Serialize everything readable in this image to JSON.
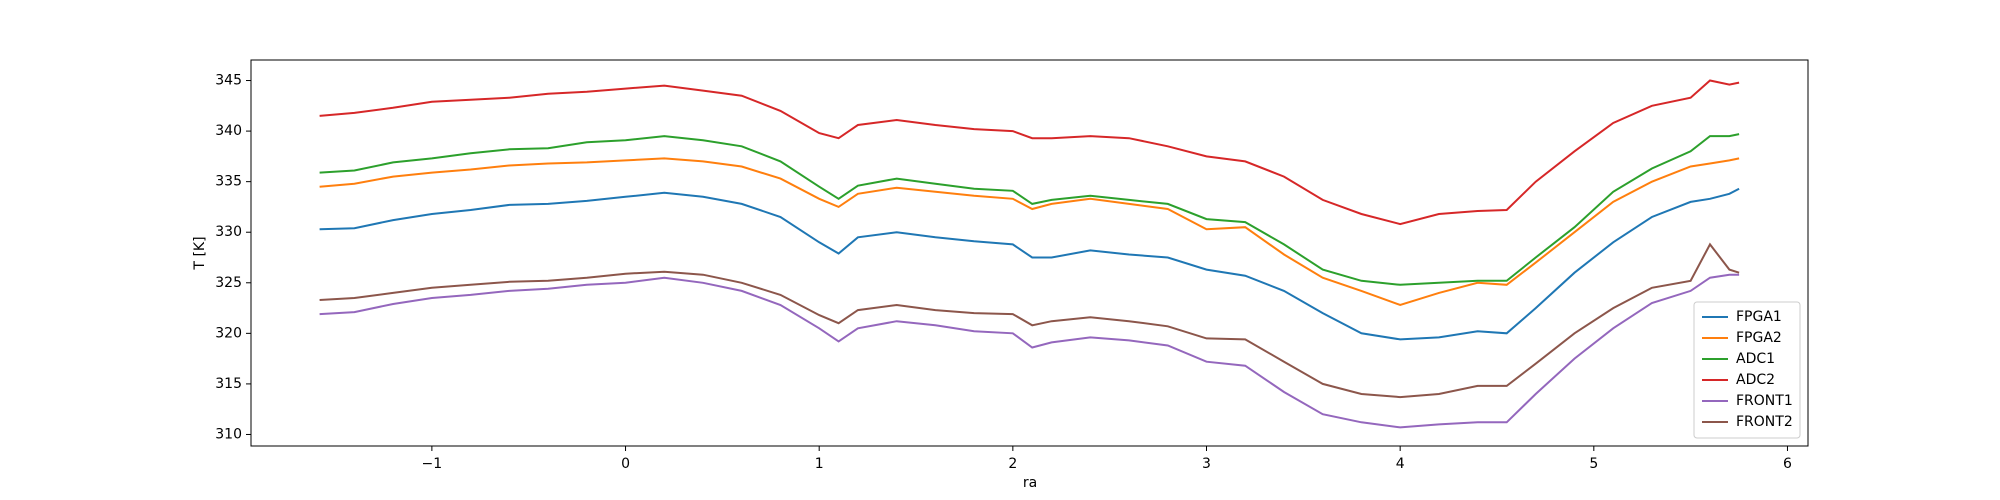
{
  "chart_data": {
    "type": "line",
    "x_label": "ra",
    "y_label": "T [K]",
    "x": [
      -1.58,
      -1.4,
      -1.2,
      -1.0,
      -0.8,
      -0.6,
      -0.4,
      -0.2,
      0,
      0.2,
      0.4,
      0.6,
      0.8,
      1.0,
      1.1,
      1.2,
      1.4,
      1.6,
      1.8,
      2.0,
      2.1,
      2.2,
      2.4,
      2.6,
      2.8,
      3.0,
      3.2,
      3.4,
      3.6,
      3.8,
      4.0,
      4.2,
      4.4,
      4.55,
      4.7,
      4.9,
      5.1,
      5.3,
      5.5,
      5.6,
      5.7,
      5.75
    ],
    "series": [
      {
        "name": "FPGA1",
        "color": "#1f77b4",
        "values": [
          330.3,
          330.4,
          331.2,
          331.8,
          332.2,
          332.7,
          332.8,
          333.1,
          333.5,
          333.9,
          333.5,
          332.8,
          331.5,
          329,
          327.9,
          329.5,
          330.0,
          329.5,
          329.1,
          328.8,
          327.5,
          327.5,
          328.2,
          327.8,
          327.5,
          326.3,
          325.7,
          324.2,
          322.0,
          320.0,
          319.4,
          319.6,
          320.2,
          320.0,
          322.5,
          326,
          329,
          331.5,
          333,
          333.3,
          333.8,
          334.3
        ]
      },
      {
        "name": "FPGA2",
        "color": "#ff7f0e",
        "values": [
          334.5,
          334.8,
          335.5,
          335.9,
          336.2,
          336.6,
          336.8,
          336.9,
          337.1,
          337.3,
          337.0,
          336.5,
          335.3,
          333.3,
          332.5,
          333.8,
          334.4,
          334.0,
          333.6,
          333.3,
          332.3,
          332.8,
          333.3,
          332.8,
          332.3,
          330.3,
          330.5,
          327.8,
          325.5,
          324.2,
          322.8,
          324.0,
          325.0,
          324.8,
          327,
          330,
          333,
          335,
          336.5,
          336.8,
          337.1,
          337.3
        ]
      },
      {
        "name": "ADC1",
        "color": "#2ca02c",
        "values": [
          335.9,
          336.1,
          336.9,
          337.3,
          337.8,
          338.2,
          338.3,
          338.9,
          339.1,
          339.5,
          339.1,
          338.5,
          337,
          334.5,
          333.3,
          334.6,
          335.3,
          334.8,
          334.3,
          334.1,
          332.8,
          333.2,
          333.6,
          333.2,
          332.8,
          331.3,
          331,
          328.8,
          326.3,
          325.2,
          324.8,
          325.0,
          325.2,
          325.2,
          327.5,
          330.5,
          334,
          336.3,
          338,
          339.5,
          339.5,
          339.7
        ]
      },
      {
        "name": "ADC2",
        "color": "#d62728",
        "values": [
          341.5,
          341.8,
          342.3,
          342.9,
          343.1,
          343.3,
          343.7,
          343.9,
          344.2,
          344.5,
          344.0,
          343.5,
          342.0,
          339.8,
          339.3,
          340.6,
          341.1,
          340.6,
          340.2,
          340.0,
          339.3,
          339.3,
          339.5,
          339.3,
          338.5,
          337.5,
          337.0,
          335.5,
          333.2,
          331.8,
          330.8,
          331.8,
          332.1,
          332.2,
          335,
          338,
          340.8,
          342.5,
          343.3,
          345.0,
          344.6,
          344.8
        ]
      },
      {
        "name": "FRONT1",
        "color": "#9467bd",
        "values": [
          321.9,
          322.1,
          322.9,
          323.5,
          323.8,
          324.2,
          324.4,
          324.8,
          325.0,
          325.5,
          325.0,
          324.2,
          322.8,
          320.5,
          319.2,
          320.5,
          321.2,
          320.8,
          320.2,
          320.0,
          318.6,
          319.1,
          319.6,
          319.3,
          318.8,
          317.2,
          316.8,
          314.2,
          312.0,
          311.2,
          310.7,
          311.0,
          311.2,
          311.2,
          314,
          317.5,
          320.5,
          323,
          324.2,
          325.5,
          325.8,
          325.8
        ]
      },
      {
        "name": "FRONT2",
        "color": "#8c564b",
        "values": [
          323.3,
          323.5,
          324.0,
          324.5,
          324.8,
          325.1,
          325.2,
          325.5,
          325.9,
          326.1,
          325.8,
          325.0,
          323.8,
          321.8,
          321.0,
          322.3,
          322.8,
          322.3,
          322.0,
          321.9,
          320.8,
          321.2,
          321.6,
          321.2,
          320.7,
          319.5,
          319.4,
          317.2,
          315.0,
          314.0,
          313.7,
          314.0,
          314.8,
          314.8,
          317,
          320,
          322.5,
          324.5,
          325.2,
          328.8,
          326.3,
          326
        ]
      }
    ],
    "xlim": [
      -1.934,
      6.106
    ],
    "xticks": [
      {
        "value": -1,
        "label": "−1"
      },
      0,
      1,
      2,
      3,
      4,
      5,
      6
    ],
    "ylim": [
      308.86,
      347.03
    ],
    "yticks": [
      310,
      315,
      320,
      325,
      330,
      335,
      340,
      345
    ],
    "legend": "lower right"
  }
}
